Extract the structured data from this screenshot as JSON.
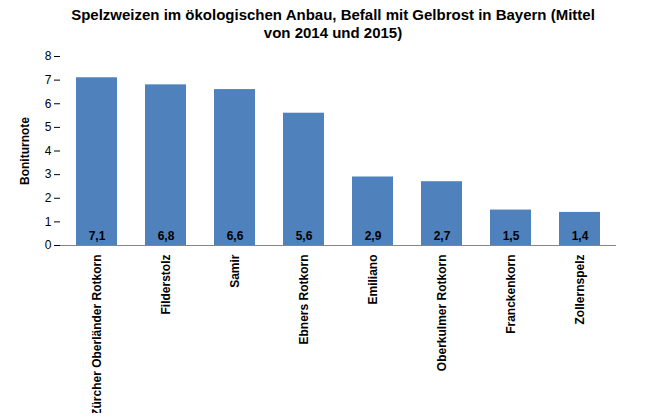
{
  "chart_data": {
    "type": "bar",
    "title": "Spelzweizen im ökologischen Anbau, Befall mit Gelbrost in Bayern (Mittel von 2014 und 2015)",
    "y_label": "Boniturnote",
    "categories": [
      "Zürcher Oberländer Rotkorn",
      "Filderstolz",
      "Samir",
      "Ebners Rotkorn",
      "Emiliano",
      "Oberkulmer Rotkorn",
      "Franckenkorn",
      "Zollernspelz"
    ],
    "values": [
      7.1,
      6.8,
      6.6,
      5.6,
      2.9,
      2.7,
      1.5,
      1.4
    ],
    "value_labels": [
      "7,1",
      "6,8",
      "6,6",
      "5,6",
      "2,9",
      "2,7",
      "1,5",
      "1,4"
    ],
    "color": "#4f81bd",
    "ylim": [
      0,
      8
    ],
    "yticks": [
      0,
      1,
      2,
      3,
      4,
      5,
      6,
      7,
      8
    ],
    "grid": false,
    "data_labels": true
  }
}
